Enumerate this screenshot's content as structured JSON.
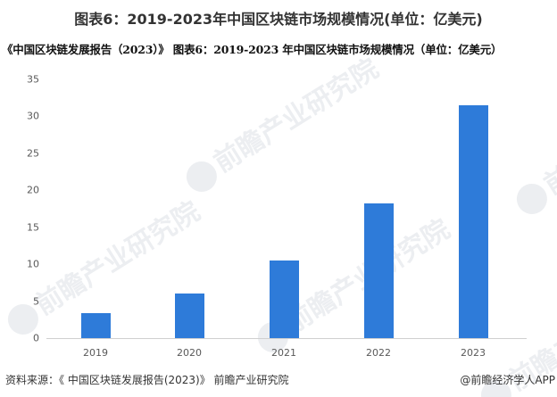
{
  "header": {
    "title": "图表6：2019-2023年中国区块链市场规模情况(单位：亿美元)",
    "subtitle": "《中国区块链发展报告（2023）》 图表6：2019-2023 年中国区块链市场规模情况（单位：亿美元）"
  },
  "watermark": {
    "text": "前瞻产业研究院"
  },
  "footer": {
    "source": "资料来源：《 中国区块链发展报告(2023)》 前瞻产业研究院",
    "credit": "@前瞻经济学人APP"
  },
  "colors": {
    "bar": "#2E7BD9",
    "axis": "#d0d0d0",
    "tick_text": "#595959"
  },
  "chart_data": {
    "type": "bar",
    "title": "图表6：2019-2023年中国区块链市场规模情况(单位：亿美元)",
    "xlabel": "",
    "ylabel": "亿美元",
    "categories": [
      "2019",
      "2020",
      "2021",
      "2022",
      "2023"
    ],
    "values": [
      3.4,
      6.0,
      10.5,
      18.2,
      31.5
    ],
    "yticks": [
      "0",
      "5",
      "10",
      "15",
      "20",
      "25",
      "30",
      "35"
    ],
    "ylim": [
      0,
      35
    ],
    "grid": false,
    "legend": null
  }
}
